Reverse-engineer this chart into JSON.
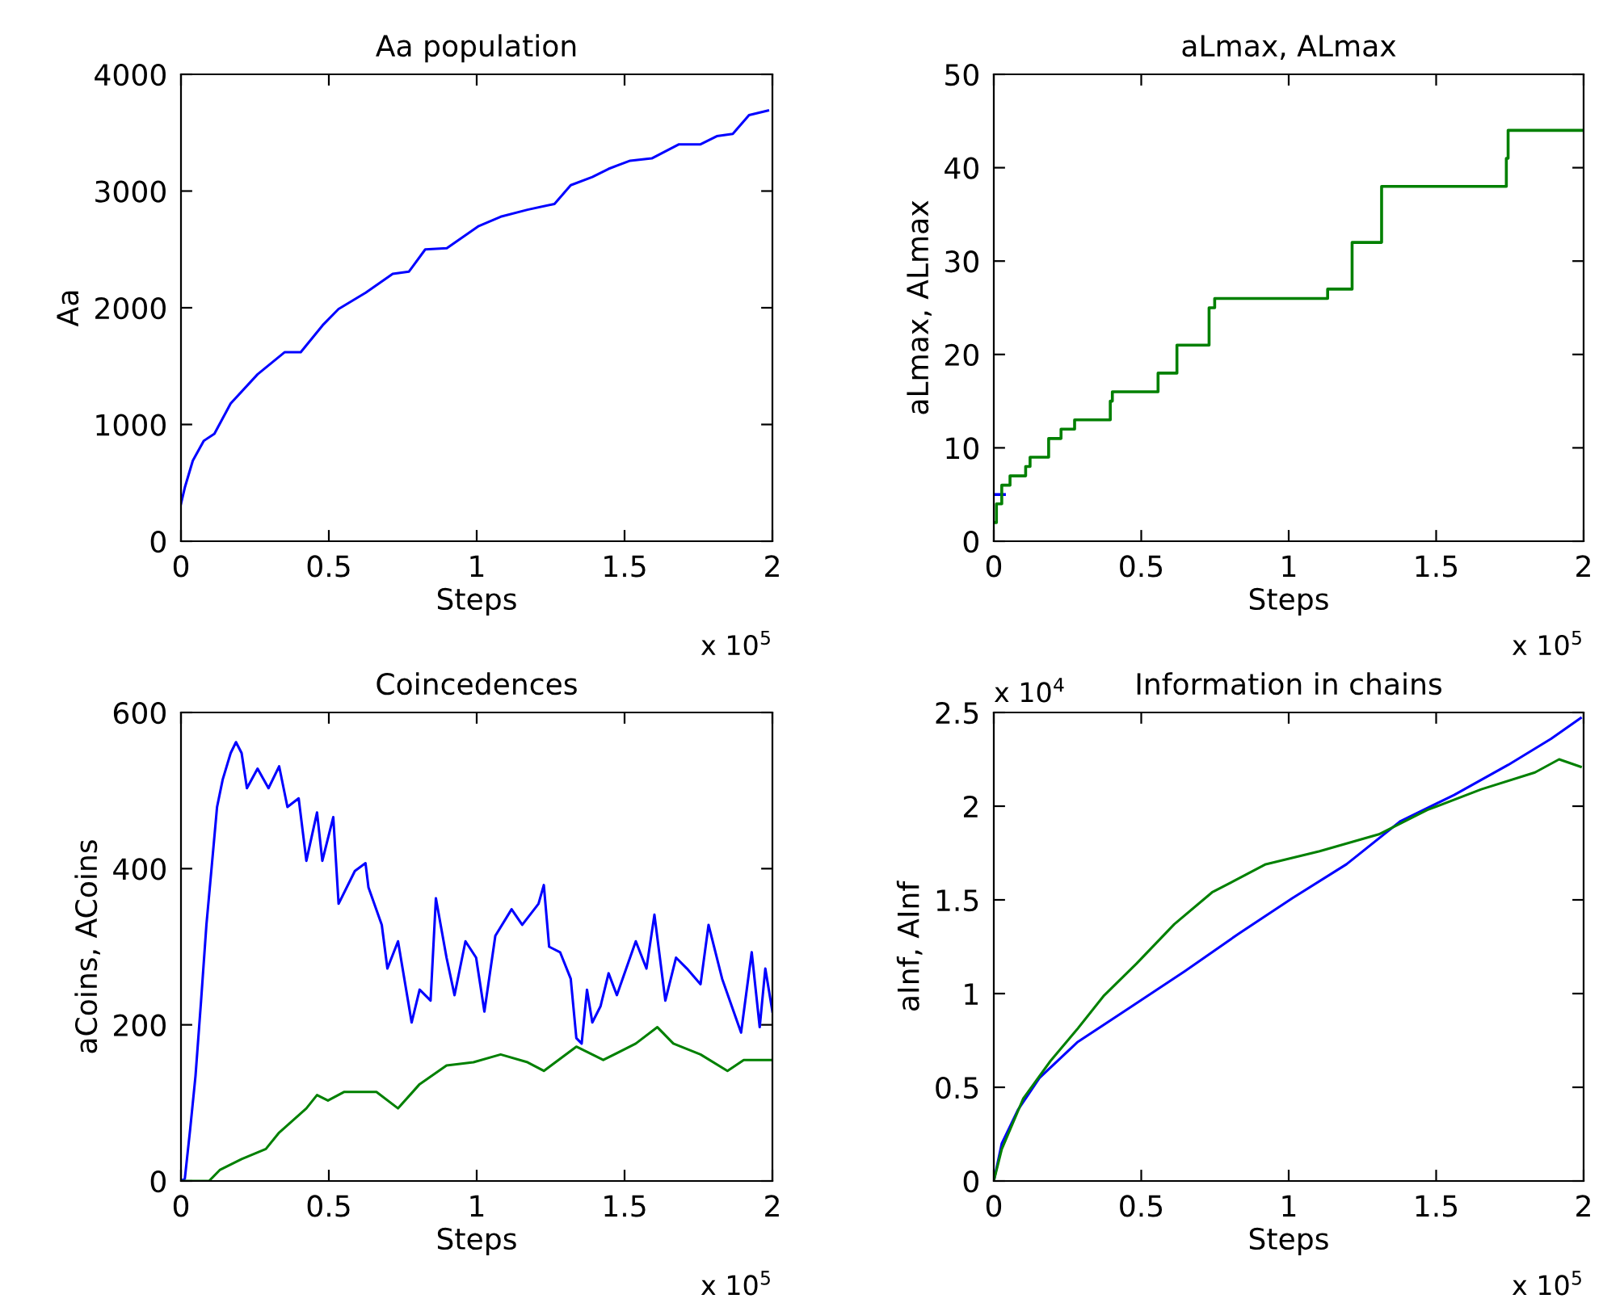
{
  "chart_data": [
    {
      "type": "line",
      "title": "Aa population",
      "xlabel": "Steps",
      "ylabel": "Aa",
      "annotations": [
        "x 10$^{5}$"
      ],
      "xlim": [
        0,
        2
      ],
      "ylim": [
        0,
        4000
      ],
      "xticks": [
        0,
        0.5,
        1,
        1.5,
        2
      ],
      "yticks": [
        0,
        1000,
        2000,
        3000,
        4000
      ],
      "series": [
        {
          "color": "#0000ff",
          "x": [
            0,
            0.013,
            0.04,
            0.077,
            0.113,
            0.168,
            0.259,
            0.351,
            0.405,
            0.479,
            0.533,
            0.625,
            0.716,
            0.771,
            0.826,
            0.899,
            1.007,
            1.081,
            1.172,
            1.263,
            1.318,
            1.391,
            1.446,
            1.519,
            1.592,
            1.684,
            1.757,
            1.812,
            1.866,
            1.921,
            1.985
          ],
          "values": [
            320,
            460,
            690,
            860,
            920,
            1180,
            1430,
            1620,
            1620,
            1850,
            1990,
            2130,
            2290,
            2310,
            2500,
            2510,
            2700,
            2780,
            2840,
            2890,
            3050,
            3120,
            3190,
            3260,
            3280,
            3400,
            3400,
            3470,
            3490,
            3650,
            3690
          ]
        }
      ]
    },
    {
      "type": "step",
      "title": "aLmax, ALmax",
      "xlabel": "Steps",
      "ylabel": "aLmax, ALmax",
      "annotations": [
        "x 10$^{5}$"
      ],
      "xlim": [
        0,
        2
      ],
      "ylim": [
        0,
        50
      ],
      "xticks": [
        0,
        0.5,
        1,
        1.5,
        2
      ],
      "yticks": [
        0,
        10,
        20,
        30,
        40,
        50
      ],
      "series": [
        {
          "color": "#0000ff",
          "x": [
            0,
            0.036
          ],
          "values": [
            5,
            5
          ]
        },
        {
          "color": "#008000",
          "x": [
            0,
            0.009,
            0.027,
            0.055,
            0.108,
            0.123,
            0.186,
            0.228,
            0.274,
            0.395,
            0.402,
            0.557,
            0.621,
            0.73,
            0.749,
            1.132,
            1.215,
            1.315,
            1.738,
            1.744,
            2
          ],
          "values": [
            2,
            4,
            6,
            7,
            8,
            9,
            11,
            12,
            13,
            15,
            16,
            18,
            21,
            25,
            26,
            27,
            32,
            38,
            41,
            44,
            44
          ]
        }
      ]
    },
    {
      "type": "line",
      "title": "Coincedences",
      "xlabel": "Steps",
      "ylabel": "aCoins, ACoins",
      "annotations": [
        "x 10$^{5}$"
      ],
      "xlim": [
        0,
        2
      ],
      "ylim": [
        0,
        600
      ],
      "xticks": [
        0,
        0.5,
        1,
        1.5,
        2
      ],
      "yticks": [
        0,
        200,
        400,
        600
      ],
      "series": [
        {
          "color": "#0000ff",
          "x": [
            0,
            0.013,
            0.031,
            0.049,
            0.068,
            0.086,
            0.104,
            0.122,
            0.141,
            0.168,
            0.186,
            0.205,
            0.223,
            0.259,
            0.296,
            0.332,
            0.36,
            0.398,
            0.424,
            0.46,
            0.478,
            0.515,
            0.533,
            0.588,
            0.624,
            0.634,
            0.679,
            0.698,
            0.734,
            0.78,
            0.807,
            0.844,
            0.862,
            0.898,
            0.925,
            0.962,
            0.998,
            1.026,
            1.063,
            1.118,
            1.154,
            1.209,
            1.227,
            1.245,
            1.282,
            1.318,
            1.337,
            1.355,
            1.373,
            1.391,
            1.419,
            1.446,
            1.474,
            1.538,
            1.574,
            1.601,
            1.638,
            1.674,
            1.711,
            1.757,
            1.784,
            1.83,
            1.894,
            1.93,
            1.957,
            1.976,
            2
          ],
          "values": [
            0,
            3,
            66,
            134,
            231,
            328,
            403,
            479,
            514,
            548,
            562,
            548,
            503,
            528,
            503,
            531,
            479,
            490,
            410,
            472,
            410,
            466,
            355,
            397,
            407,
            376,
            328,
            272,
            307,
            203,
            245,
            231,
            362,
            286,
            238,
            307,
            286,
            217,
            314,
            348,
            328,
            355,
            379,
            300,
            293,
            259,
            183,
            176,
            245,
            203,
            224,
            266,
            238,
            307,
            272,
            341,
            231,
            286,
            272,
            252,
            328,
            259,
            190,
            293,
            197,
            272,
            217
          ]
        },
        {
          "color": "#008000",
          "x": [
            0,
            0.095,
            0.131,
            0.205,
            0.287,
            0.332,
            0.424,
            0.46,
            0.497,
            0.551,
            0.661,
            0.734,
            0.807,
            0.898,
            0.989,
            1.081,
            1.172,
            1.227,
            1.337,
            1.428,
            1.538,
            1.611,
            1.665,
            1.757,
            1.848,
            1.903,
            2
          ],
          "values": [
            0,
            0,
            14,
            28,
            41,
            62,
            93,
            110,
            103,
            114,
            114,
            93,
            124,
            148,
            152,
            162,
            152,
            141,
            172,
            155,
            176,
            197,
            176,
            162,
            141,
            155,
            155
          ]
        }
      ]
    },
    {
      "type": "line",
      "title": "Information in chains",
      "xlabel": "Steps",
      "ylabel": "aInf, AInf",
      "annotations": [
        "x 10$^{5}$",
        "x 10$^{4}$"
      ],
      "xlim": [
        0,
        2
      ],
      "ylim": [
        0,
        2.5
      ],
      "xticks": [
        0,
        0.5,
        1,
        1.5,
        2
      ],
      "yticks": [
        0,
        0.5,
        1,
        1.5,
        2,
        2.5
      ],
      "series": [
        {
          "color": "#0000ff",
          "x": [
            0,
            0.027,
            0.082,
            0.155,
            0.283,
            0.466,
            0.648,
            0.831,
            1.013,
            1.196,
            1.379,
            1.561,
            1.744,
            1.89,
            1.99
          ],
          "values": [
            0,
            0.2,
            0.38,
            0.55,
            0.74,
            0.93,
            1.12,
            1.32,
            1.51,
            1.69,
            1.92,
            2.06,
            2.22,
            2.36,
            2.47
          ]
        },
        {
          "color": "#008000",
          "x": [
            0,
            0.027,
            0.1,
            0.192,
            0.283,
            0.374,
            0.484,
            0.612,
            0.74,
            0.922,
            1.105,
            1.306,
            1.47,
            1.653,
            1.835,
            1.917,
            1.99
          ],
          "values": [
            0,
            0.17,
            0.44,
            0.64,
            0.81,
            0.99,
            1.16,
            1.37,
            1.54,
            1.69,
            1.76,
            1.85,
            1.98,
            2.09,
            2.18,
            2.25,
            2.21
          ]
        }
      ]
    }
  ]
}
